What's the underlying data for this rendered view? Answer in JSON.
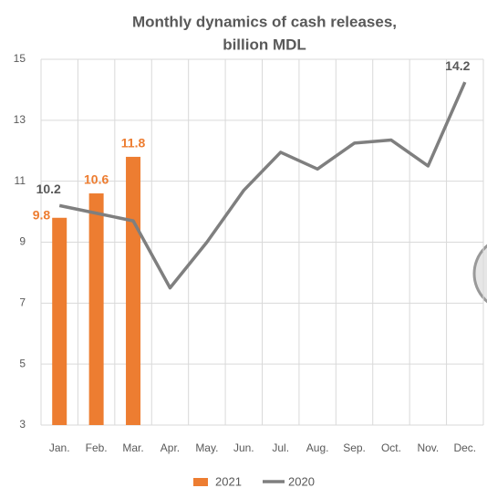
{
  "chart_data": {
    "type": "bar",
    "title": "Monthly dynamics of cash releases,",
    "subtitle": "billion MDL",
    "categories": [
      "Jan.",
      "Feb.",
      "Mar.",
      "Apr.",
      "May.",
      "Jun.",
      "Jul.",
      "Aug.",
      "Sep.",
      "Oct.",
      "Nov.",
      "Dec."
    ],
    "series": [
      {
        "name": "2021",
        "type": "bar",
        "color": "#ed7d31",
        "values": [
          9.8,
          10.6,
          11.8,
          null,
          null,
          null,
          null,
          null,
          null,
          null,
          null,
          null
        ]
      },
      {
        "name": "2020",
        "type": "line",
        "color": "#7f7f7f",
        "values": [
          10.2,
          9.95,
          9.7,
          7.5,
          9.0,
          10.7,
          11.95,
          11.4,
          12.25,
          12.35,
          11.5,
          14.25
        ],
        "value_labels": [
          "10.2",
          null,
          null,
          null,
          null,
          null,
          null,
          null,
          null,
          null,
          null,
          "14.2"
        ]
      }
    ],
    "ylim": [
      3,
      15
    ],
    "yticks": [
      3,
      5,
      7,
      9,
      11,
      13,
      15
    ],
    "grid": true,
    "legend": "bottom"
  }
}
